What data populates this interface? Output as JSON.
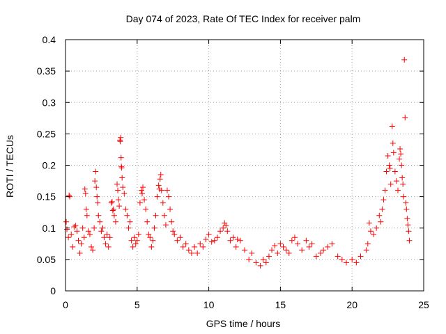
{
  "chart_data": {
    "type": "scatter",
    "title": "Day 074 of 2023, Rate Of TEC Index for receiver palm",
    "xlabel": "GPS time / hours",
    "ylabel": "ROTI / TECUs",
    "xlim": [
      0,
      25
    ],
    "ylim": [
      0,
      0.4
    ],
    "x_ticks": [
      0,
      5,
      10,
      15,
      20,
      25
    ],
    "x_tick_labels": [
      "0",
      "5",
      "10",
      "15",
      "20",
      "25"
    ],
    "y_ticks": [
      0,
      0.05,
      0.1,
      0.15,
      0.2,
      0.25,
      0.3,
      0.35,
      0.4
    ],
    "y_tick_labels": [
      "0",
      "0.05",
      "0.1",
      "0.15",
      "0.2",
      "0.25",
      "0.3",
      "0.35",
      "0.4"
    ],
    "grid": true,
    "marker": "plus",
    "color": "#ff0000",
    "series": [
      {
        "name": "ROTI",
        "points": [
          [
            0.05,
            0.11
          ],
          [
            0.1,
            0.098
          ],
          [
            0.2,
            0.085
          ],
          [
            0.25,
            0.152
          ],
          [
            0.3,
            0.15
          ],
          [
            0.4,
            0.09
          ],
          [
            0.5,
            0.07
          ],
          [
            0.6,
            0.102
          ],
          [
            0.7,
            0.104
          ],
          [
            0.8,
            0.095
          ],
          [
            0.9,
            0.08
          ],
          [
            1.0,
            0.06
          ],
          [
            1.1,
            0.075
          ],
          [
            1.2,
            0.1
          ],
          [
            1.3,
            0.085
          ],
          [
            1.35,
            0.162
          ],
          [
            1.4,
            0.155
          ],
          [
            1.45,
            0.13
          ],
          [
            1.5,
            0.12
          ],
          [
            1.6,
            0.095
          ],
          [
            1.7,
            0.09
          ],
          [
            1.8,
            0.07
          ],
          [
            1.9,
            0.065
          ],
          [
            2.0,
            0.1
          ],
          [
            2.05,
            0.175
          ],
          [
            2.1,
            0.19
          ],
          [
            2.15,
            0.165
          ],
          [
            2.2,
            0.15
          ],
          [
            2.25,
            0.14
          ],
          [
            2.3,
            0.12
          ],
          [
            2.4,
            0.11
          ],
          [
            2.5,
            0.095
          ],
          [
            2.6,
            0.1
          ],
          [
            2.7,
            0.085
          ],
          [
            2.8,
            0.075
          ],
          [
            2.9,
            0.09
          ],
          [
            3.0,
            0.07
          ],
          [
            3.1,
            0.085
          ],
          [
            3.2,
            0.14
          ],
          [
            3.25,
            0.142
          ],
          [
            3.3,
            0.128
          ],
          [
            3.35,
            0.13
          ],
          [
            3.4,
            0.12
          ],
          [
            3.5,
            0.11
          ],
          [
            3.6,
            0.17
          ],
          [
            3.65,
            0.16
          ],
          [
            3.7,
            0.145
          ],
          [
            3.75,
            0.135
          ],
          [
            3.8,
            0.24
          ],
          [
            3.82,
            0.238
          ],
          [
            3.85,
            0.244
          ],
          [
            3.88,
            0.212
          ],
          [
            3.9,
            0.198
          ],
          [
            3.92,
            0.196
          ],
          [
            3.95,
            0.18
          ],
          [
            4.0,
            0.165
          ],
          [
            4.1,
            0.155
          ],
          [
            4.2,
            0.13
          ],
          [
            4.3,
            0.12
          ],
          [
            4.4,
            0.1
          ],
          [
            4.5,
            0.11
          ],
          [
            4.6,
            0.08
          ],
          [
            4.7,
            0.07
          ],
          [
            4.8,
            0.085
          ],
          [
            4.9,
            0.075
          ],
          [
            5.0,
            0.08
          ],
          [
            5.1,
            0.09
          ],
          [
            5.2,
            0.14
          ],
          [
            5.3,
            0.16
          ],
          [
            5.35,
            0.155
          ],
          [
            5.4,
            0.165
          ],
          [
            5.5,
            0.145
          ],
          [
            5.6,
            0.13
          ],
          [
            5.7,
            0.11
          ],
          [
            5.8,
            0.09
          ],
          [
            5.9,
            0.085
          ],
          [
            6.0,
            0.07
          ],
          [
            6.1,
            0.08
          ],
          [
            6.2,
            0.1
          ],
          [
            6.3,
            0.12
          ],
          [
            6.4,
            0.15
          ],
          [
            6.5,
            0.168
          ],
          [
            6.55,
            0.162
          ],
          [
            6.6,
            0.178
          ],
          [
            6.65,
            0.185
          ],
          [
            6.7,
            0.16
          ],
          [
            6.8,
            0.14
          ],
          [
            6.9,
            0.12
          ],
          [
            7.0,
            0.105
          ],
          [
            7.1,
            0.16
          ],
          [
            7.2,
            0.15
          ],
          [
            7.3,
            0.13
          ],
          [
            7.4,
            0.11
          ],
          [
            7.5,
            0.095
          ],
          [
            7.6,
            0.09
          ],
          [
            7.8,
            0.08
          ],
          [
            8.0,
            0.085
          ],
          [
            8.2,
            0.07
          ],
          [
            8.4,
            0.075
          ],
          [
            8.6,
            0.065
          ],
          [
            8.8,
            0.06
          ],
          [
            9.0,
            0.07
          ],
          [
            9.2,
            0.06
          ],
          [
            9.4,
            0.075
          ],
          [
            9.6,
            0.07
          ],
          [
            9.8,
            0.082
          ],
          [
            10.0,
            0.09
          ],
          [
            10.2,
            0.078
          ],
          [
            10.4,
            0.08
          ],
          [
            10.6,
            0.085
          ],
          [
            10.8,
            0.095
          ],
          [
            11.0,
            0.1
          ],
          [
            11.1,
            0.108
          ],
          [
            11.2,
            0.104
          ],
          [
            11.3,
            0.095
          ],
          [
            11.5,
            0.08
          ],
          [
            11.7,
            0.085
          ],
          [
            11.9,
            0.07
          ],
          [
            12.0,
            0.082
          ],
          [
            12.2,
            0.08
          ],
          [
            12.5,
            0.065
          ],
          [
            12.8,
            0.05
          ],
          [
            13.0,
            0.06
          ],
          [
            13.3,
            0.045
          ],
          [
            13.6,
            0.04
          ],
          [
            13.8,
            0.05
          ],
          [
            14.0,
            0.045
          ],
          [
            14.2,
            0.055
          ],
          [
            14.4,
            0.065
          ],
          [
            14.6,
            0.072
          ],
          [
            14.8,
            0.06
          ],
          [
            15.0,
            0.075
          ],
          [
            15.2,
            0.07
          ],
          [
            15.4,
            0.065
          ],
          [
            15.6,
            0.06
          ],
          [
            15.8,
            0.08
          ],
          [
            16.0,
            0.085
          ],
          [
            16.2,
            0.075
          ],
          [
            16.5,
            0.065
          ],
          [
            16.8,
            0.08
          ],
          [
            17.0,
            0.07
          ],
          [
            17.2,
            0.075
          ],
          [
            17.5,
            0.055
          ],
          [
            17.8,
            0.06
          ],
          [
            18.0,
            0.065
          ],
          [
            18.3,
            0.07
          ],
          [
            18.6,
            0.075
          ],
          [
            19.0,
            0.055
          ],
          [
            19.3,
            0.05
          ],
          [
            19.6,
            0.045
          ],
          [
            20.0,
            0.05
          ],
          [
            20.3,
            0.045
          ],
          [
            20.6,
            0.055
          ],
          [
            21.0,
            0.065
          ],
          [
            21.1,
            0.075
          ],
          [
            21.2,
            0.108
          ],
          [
            21.3,
            0.095
          ],
          [
            21.5,
            0.09
          ],
          [
            21.7,
            0.1
          ],
          [
            21.9,
            0.12
          ],
          [
            22.0,
            0.11
          ],
          [
            22.1,
            0.13
          ],
          [
            22.2,
            0.145
          ],
          [
            22.3,
            0.16
          ],
          [
            22.4,
            0.19
          ],
          [
            22.5,
            0.215
          ],
          [
            22.6,
            0.2
          ],
          [
            22.65,
            0.195
          ],
          [
            22.7,
            0.17
          ],
          [
            22.8,
            0.262
          ],
          [
            22.85,
            0.235
          ],
          [
            22.9,
            0.22
          ],
          [
            23.0,
            0.19
          ],
          [
            23.1,
            0.175
          ],
          [
            23.2,
            0.16
          ],
          [
            23.3,
            0.21
          ],
          [
            23.35,
            0.226
          ],
          [
            23.4,
            0.218
          ],
          [
            23.45,
            0.2
          ],
          [
            23.5,
            0.18
          ],
          [
            23.55,
            0.17
          ],
          [
            23.6,
            0.15
          ],
          [
            23.65,
            0.368
          ],
          [
            23.7,
            0.276
          ],
          [
            23.75,
            0.14
          ],
          [
            23.8,
            0.13
          ],
          [
            23.85,
            0.115
          ],
          [
            23.9,
            0.105
          ],
          [
            23.95,
            0.095
          ],
          [
            24.0,
            0.08
          ]
        ]
      }
    ]
  }
}
